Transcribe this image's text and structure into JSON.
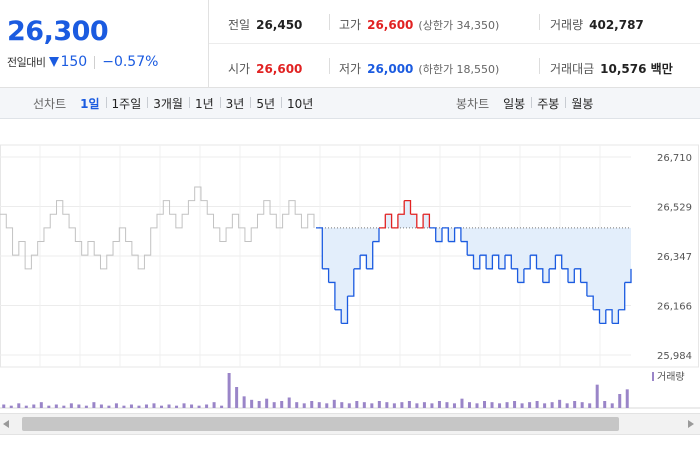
{
  "summary": {
    "price": "26,300",
    "change_label": "전일대비",
    "change_direction": "down",
    "change_amount": "150",
    "change_rate": "−0.57%",
    "stats": [
      {
        "label": "전일",
        "value": "26,450",
        "color": "normal"
      },
      {
        "label": "고가",
        "value": "26,600",
        "color": "up",
        "sub": "(상한가 34,350)"
      },
      {
        "label": "거래량",
        "value": "402,787",
        "color": "normal"
      },
      {
        "label": "시가",
        "value": "26,600",
        "color": "up"
      },
      {
        "label": "저가",
        "value": "26,000",
        "color": "down",
        "sub": "(하한가 18,550)"
      },
      {
        "label": "거래대금",
        "value": "10,576 백만",
        "color": "normal"
      }
    ]
  },
  "tabs": {
    "line_title": "선차트",
    "line_tabs": [
      "1일",
      "1주일",
      "3개월",
      "1년",
      "3년",
      "5년",
      "10년"
    ],
    "line_active": "1일",
    "candle_title": "봉차트",
    "candle_tabs": [
      "일봉",
      "주봉",
      "월봉"
    ]
  },
  "colors": {
    "up": "#e12222",
    "down": "#1b5be0",
    "prev_day_line": "#c2c2c2",
    "fill": "#e3eefb",
    "volume": "#9a85c8"
  },
  "chart_data": {
    "type": "line",
    "y_ticks": [
      "26,710",
      "26,529",
      "26,347",
      "26,166",
      "25,984"
    ],
    "ylim": [
      25984,
      26710
    ],
    "reference_price": 26450,
    "series": [
      {
        "values": [
          26500,
          26450,
          26350,
          26400,
          26300,
          26350,
          26400,
          26450,
          26500,
          26550,
          26500,
          26450,
          26400,
          26350,
          26400,
          26350,
          26300,
          26350,
          26400,
          26450,
          26400,
          26350,
          26300,
          26350,
          26450,
          26500,
          26550,
          26500,
          26450,
          26500,
          26550,
          26600,
          26550,
          26500,
          26450,
          26400,
          26450,
          26500,
          26450,
          26400,
          26450,
          26500,
          26550,
          26500,
          26450,
          26500,
          26550,
          26500,
          26450,
          26500,
          26450
        ]
      },
      {
        "values": [
          26450,
          26300,
          26250,
          26150,
          26100,
          26200,
          26300,
          26350,
          26300,
          26400,
          26450,
          26500,
          26450,
          26500,
          26550,
          26500,
          26450,
          26500,
          26450,
          26400,
          26450,
          26400,
          26450,
          26400,
          26350,
          26300,
          26350,
          26300,
          26350,
          26300,
          26350,
          26300,
          26250,
          26300,
          26350,
          26300,
          26250,
          26300,
          26350,
          26300,
          26250,
          26300,
          26250,
          26200,
          26150,
          26100,
          26150,
          26100,
          26150,
          26250,
          26300
        ]
      }
    ],
    "volume_legend": "거래량",
    "volume": [
      3,
      2,
      4,
      2,
      3,
      5,
      2,
      3,
      2,
      4,
      3,
      2,
      5,
      3,
      2,
      4,
      2,
      3,
      2,
      3,
      4,
      2,
      3,
      2,
      4,
      3,
      2,
      3,
      5,
      2,
      30,
      18,
      10,
      7,
      6,
      8,
      5,
      6,
      9,
      5,
      4,
      6,
      5,
      4,
      7,
      5,
      4,
      6,
      5,
      4,
      6,
      5,
      4,
      5,
      6,
      4,
      5,
      4,
      6,
      5,
      4,
      8,
      5,
      4,
      6,
      5,
      4,
      5,
      6,
      4,
      5,
      6,
      4,
      5,
      7,
      4,
      6,
      5,
      4,
      20,
      6,
      4,
      12,
      16
    ]
  }
}
